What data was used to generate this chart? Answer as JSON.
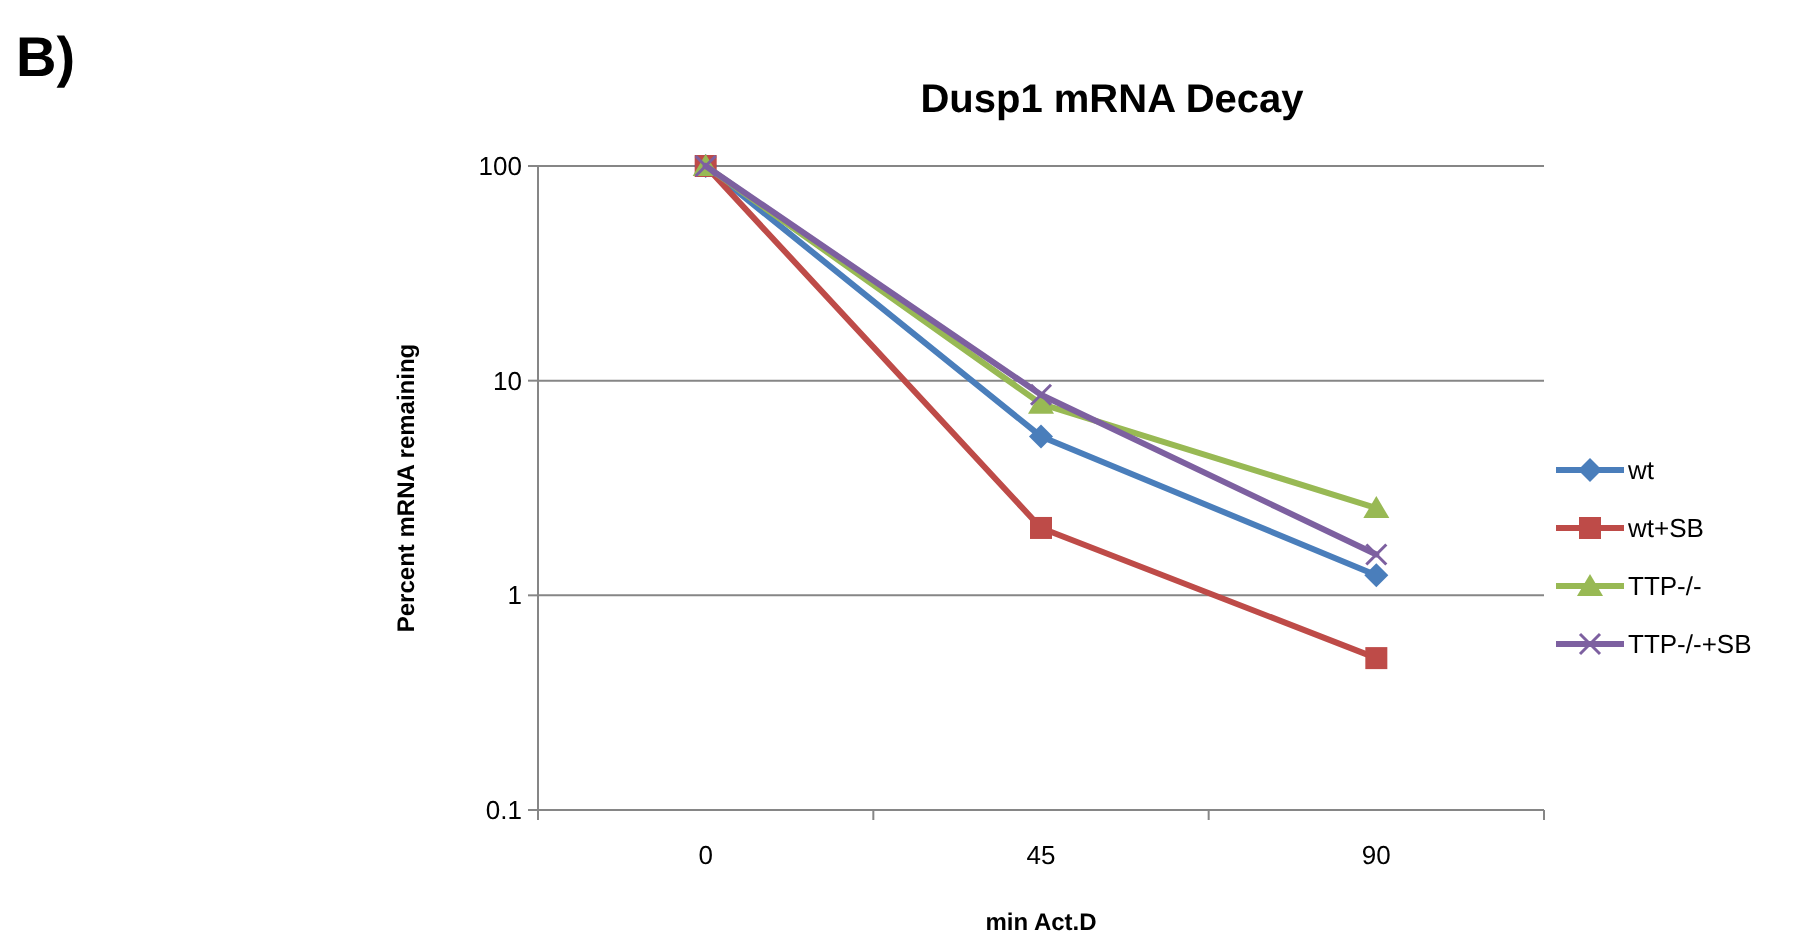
{
  "chart_data": {
    "type": "line",
    "title": "Dusp1 mRNA Decay",
    "xlabel": "min Act.D",
    "ylabel": "Percent mRNA remaining",
    "annotations": [
      "B)"
    ],
    "categories": [
      "0",
      "45",
      "90"
    ],
    "log": true,
    "ylim": [
      0.1,
      100
    ],
    "yticks": [
      0.1,
      1,
      10,
      100
    ],
    "grid": "y",
    "legend": "right",
    "series": [
      {
        "name": "wt",
        "color": "#4a7ebb",
        "marker": "diamond",
        "values": [
          100,
          5.5,
          1.24
        ]
      },
      {
        "name": "wt+SB",
        "color": "#be4b48",
        "marker": "square",
        "values": [
          100,
          2.06,
          0.51
        ]
      },
      {
        "name": "TTP-/-",
        "color": "#98b954",
        "marker": "triangle",
        "values": [
          100,
          7.8,
          2.55
        ]
      },
      {
        "name": "TTP-/-+SB",
        "color": "#7d60a0",
        "marker": "cross",
        "values": [
          100,
          8.6,
          1.55
        ]
      }
    ]
  }
}
